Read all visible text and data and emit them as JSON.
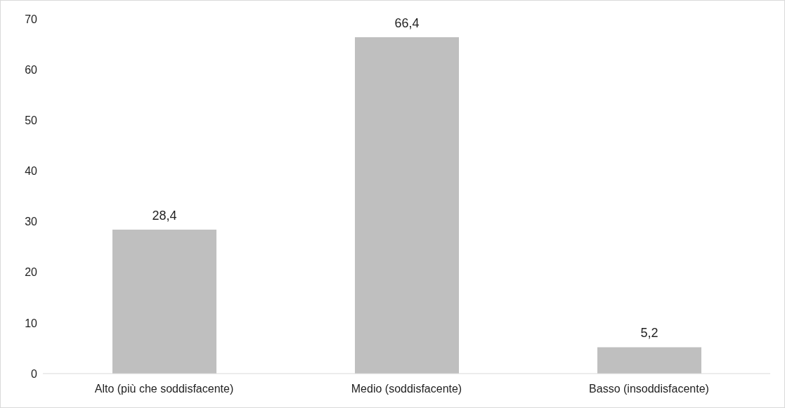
{
  "chart_data": {
    "type": "bar",
    "categories": [
      "Alto (più che soddisfacente)",
      "Medio (soddisfacente)",
      "Basso (insoddisfacente)"
    ],
    "values": [
      28.4,
      66.4,
      5.2
    ],
    "value_labels": [
      "28,4",
      "66,4",
      "5,2"
    ],
    "color": "#bfbfbf",
    "ylim": [
      0,
      70
    ],
    "yticks": [
      0,
      10,
      20,
      30,
      40,
      50,
      60,
      70
    ],
    "grid": false,
    "legend": false
  }
}
